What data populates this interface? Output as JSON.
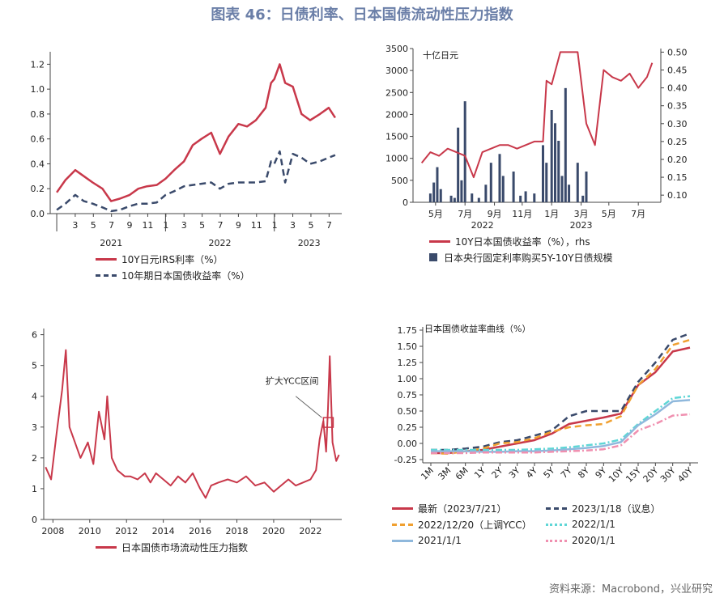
{
  "title": "图表 46：日债利率、日本国债流动性压力指数",
  "source": "资料来源：Macrobond，兴业研究",
  "colors": {
    "red": "#c8384a",
    "navy": "#3a4a6b",
    "orange": "#f0a030",
    "cyan": "#5fd6d6",
    "lightblue": "#8fb8dc",
    "pink": "#f090b0"
  },
  "chart_data": [
    {
      "type": "line",
      "panel": "top-left",
      "ylim": [
        0,
        1.3
      ],
      "yticks": [
        "0.0",
        "0.2",
        "0.4",
        "0.6",
        "0.8",
        "1.0",
        "1.2"
      ],
      "xtick_labels": [
        "3",
        "5",
        "7",
        "9",
        "11",
        "1",
        "3",
        "5",
        "7",
        "9",
        "11",
        "1",
        "3",
        "5",
        "7"
      ],
      "year_labels": [
        "2021",
        "2022",
        "2023"
      ],
      "series": [
        {
          "name": "10Y日元IRS利率（%）",
          "style": "solid",
          "color": "#c8384a",
          "x": [
            2021.0,
            2021.08,
            2021.17,
            2021.25,
            2021.33,
            2021.42,
            2021.5,
            2021.58,
            2021.67,
            2021.75,
            2021.83,
            2021.92,
            2022.0,
            2022.08,
            2022.17,
            2022.25,
            2022.33,
            2022.42,
            2022.5,
            2022.58,
            2022.67,
            2022.75,
            2022.83,
            2022.92,
            2022.97,
            2023.0,
            2023.05,
            2023.1,
            2023.17,
            2023.25,
            2023.33,
            2023.42,
            2023.5,
            2023.56
          ],
          "y": [
            0.17,
            0.27,
            0.35,
            0.3,
            0.25,
            0.2,
            0.1,
            0.12,
            0.15,
            0.2,
            0.22,
            0.23,
            0.28,
            0.35,
            0.42,
            0.55,
            0.6,
            0.65,
            0.48,
            0.62,
            0.72,
            0.7,
            0.75,
            0.85,
            1.05,
            1.08,
            1.2,
            1.05,
            1.02,
            0.8,
            0.75,
            0.8,
            0.85,
            0.77
          ]
        },
        {
          "name": "10年期日本国债收益率（%）",
          "style": "dash",
          "color": "#3a4a6b",
          "x": [
            2021.0,
            2021.08,
            2021.17,
            2021.25,
            2021.33,
            2021.42,
            2021.5,
            2021.58,
            2021.67,
            2021.75,
            2021.83,
            2021.92,
            2022.0,
            2022.08,
            2022.17,
            2022.25,
            2022.33,
            2022.42,
            2022.5,
            2022.58,
            2022.67,
            2022.75,
            2022.83,
            2022.92,
            2022.97,
            2023.0,
            2023.05,
            2023.1,
            2023.17,
            2023.25,
            2023.33,
            2023.42,
            2023.5,
            2023.56
          ],
          "y": [
            0.03,
            0.08,
            0.15,
            0.1,
            0.08,
            0.05,
            0.02,
            0.03,
            0.06,
            0.08,
            0.08,
            0.09,
            0.15,
            0.18,
            0.22,
            0.23,
            0.24,
            0.25,
            0.2,
            0.24,
            0.25,
            0.25,
            0.25,
            0.26,
            0.42,
            0.4,
            0.5,
            0.25,
            0.48,
            0.45,
            0.4,
            0.42,
            0.45,
            0.47
          ]
        }
      ]
    },
    {
      "type": "bar+line",
      "panel": "top-right",
      "unit_label": "十亿日元",
      "ylim_left": [
        0,
        3500
      ],
      "yticks_left": [
        "0",
        "500",
        "1000",
        "1500",
        "2000",
        "2500",
        "3000",
        "3500"
      ],
      "ylim_right": [
        0.08,
        0.51
      ],
      "yticks_right": [
        "0.10",
        "0.15",
        "0.20",
        "0.25",
        "0.30",
        "0.35",
        "0.40",
        "0.45",
        "0.50"
      ],
      "xtick_labels": [
        "5月",
        "7月",
        "9月",
        "11月",
        "1月",
        "3月",
        "5月",
        "7月"
      ],
      "year_labels": [
        "2022",
        "2023"
      ],
      "series": [
        {
          "name": "10Y日本国债收益率（%），rhs",
          "style": "solid",
          "axis": "right",
          "color": "#c8384a",
          "x": [
            2022.25,
            2022.3,
            2022.35,
            2022.4,
            2022.45,
            2022.5,
            2022.55,
            2022.6,
            2022.65,
            2022.7,
            2022.75,
            2022.8,
            2022.85,
            2022.9,
            2022.95,
            2022.97,
            2023.0,
            2023.05,
            2023.1,
            2023.15,
            2023.2,
            2023.25,
            2023.3,
            2023.35,
            2023.4,
            2023.45,
            2023.5,
            2023.55,
            2023.58
          ],
          "y": [
            0.19,
            0.22,
            0.21,
            0.23,
            0.22,
            0.21,
            0.15,
            0.22,
            0.23,
            0.24,
            0.24,
            0.23,
            0.24,
            0.25,
            0.25,
            0.42,
            0.41,
            0.5,
            0.5,
            0.5,
            0.3,
            0.24,
            0.45,
            0.43,
            0.42,
            0.44,
            0.4,
            0.43,
            0.47
          ]
        },
        {
          "name": "日本央行固定利率购买5Y-10Y日债规模",
          "style": "bar",
          "axis": "left",
          "color": "#3a4a6b",
          "x": [
            2022.3,
            2022.32,
            2022.34,
            2022.36,
            2022.42,
            2022.44,
            2022.46,
            2022.48,
            2022.5,
            2022.54,
            2022.58,
            2022.62,
            2022.65,
            2022.7,
            2022.72,
            2022.78,
            2022.82,
            2022.85,
            2022.9,
            2022.95,
            2022.97,
            2023.0,
            2023.02,
            2023.04,
            2023.06,
            2023.08,
            2023.1,
            2023.15,
            2023.18,
            2023.2
          ],
          "y": [
            200,
            450,
            800,
            300,
            150,
            100,
            1700,
            500,
            2300,
            200,
            100,
            400,
            900,
            1100,
            600,
            700,
            150,
            250,
            200,
            1300,
            900,
            2100,
            1800,
            1400,
            600,
            2600,
            400,
            900,
            150,
            700
          ]
        }
      ]
    },
    {
      "type": "line",
      "panel": "bottom-left",
      "ylim": [
        0,
        6.2
      ],
      "yticks": [
        "0",
        "1",
        "2",
        "3",
        "4",
        "5",
        "6"
      ],
      "xtick_labels": [
        "2008",
        "2010",
        "2012",
        "2014",
        "2016",
        "2018",
        "2020",
        "2022"
      ],
      "annotation": "扩大YCC区间",
      "series": [
        {
          "name": "日本国债市场流动性压力指数",
          "style": "solid",
          "color": "#c8384a",
          "x": [
            2007.6,
            2007.9,
            2008.2,
            2008.5,
            2008.7,
            2008.9,
            2009.2,
            2009.5,
            2009.9,
            2010.2,
            2010.5,
            2010.8,
            2010.95,
            2011.2,
            2011.5,
            2011.9,
            2012.2,
            2012.6,
            2013.0,
            2013.3,
            2013.6,
            2014.0,
            2014.4,
            2014.8,
            2015.2,
            2015.6,
            2016.0,
            2016.3,
            2016.6,
            2017.0,
            2017.5,
            2018.0,
            2018.5,
            2019.0,
            2019.5,
            2020.0,
            2020.4,
            2020.8,
            2021.2,
            2021.6,
            2022.0,
            2022.3,
            2022.5,
            2022.7,
            2022.85,
            2022.95,
            2023.05,
            2023.2,
            2023.4,
            2023.55
          ],
          "y": [
            1.7,
            1.3,
            2.8,
            4.2,
            5.5,
            3.0,
            2.5,
            2.0,
            2.5,
            1.8,
            3.5,
            2.6,
            4.0,
            2.0,
            1.6,
            1.4,
            1.4,
            1.3,
            1.5,
            1.2,
            1.5,
            1.3,
            1.1,
            1.4,
            1.2,
            1.5,
            1.0,
            0.7,
            1.1,
            1.2,
            1.3,
            1.2,
            1.4,
            1.1,
            1.2,
            0.9,
            1.1,
            1.3,
            1.1,
            1.2,
            1.3,
            1.6,
            2.6,
            3.2,
            2.2,
            3.6,
            5.3,
            2.5,
            1.9,
            2.1
          ]
        }
      ]
    },
    {
      "type": "line",
      "panel": "bottom-right",
      "unit_label": "日本国债收益率曲线（%）",
      "ylim": [
        -0.3,
        1.8
      ],
      "yticks": [
        "-0.25",
        "0.00",
        "0.25",
        "0.50",
        "0.75",
        "1.00",
        "1.25",
        "1.50",
        "1.75"
      ],
      "categories": [
        "1M",
        "3M",
        "6M",
        "1Y",
        "2Y",
        "3Y",
        "4Y",
        "5Y",
        "7Y",
        "8Y",
        "9Y",
        "10Y",
        "15Y",
        "20Y",
        "30Y",
        "40Y"
      ],
      "series": [
        {
          "name": "最新（2023/7/21）",
          "style": "solid",
          "color": "#c8384a",
          "values": [
            -0.15,
            -0.15,
            -0.12,
            -0.1,
            -0.05,
            0.0,
            0.05,
            0.15,
            0.3,
            0.35,
            0.4,
            0.46,
            0.9,
            1.1,
            1.42,
            1.48
          ]
        },
        {
          "name": "2023/1/18（议息）",
          "style": "dash",
          "color": "#3a4a6b",
          "values": [
            -0.1,
            -0.1,
            -0.08,
            -0.05,
            0.02,
            0.05,
            0.12,
            0.2,
            0.42,
            0.5,
            0.5,
            0.5,
            0.95,
            1.25,
            1.6,
            1.7
          ]
        },
        {
          "name": "2022/12/20（上调YCC）",
          "style": "dash",
          "color": "#f0a030",
          "values": [
            -0.15,
            -0.16,
            -0.12,
            -0.08,
            0.0,
            0.02,
            0.08,
            0.18,
            0.25,
            0.28,
            0.3,
            0.42,
            0.9,
            1.15,
            1.52,
            1.6
          ]
        },
        {
          "name": "2022/1/1",
          "style": "dashdot",
          "color": "#5fd6d6",
          "values": [
            -0.1,
            -0.1,
            -0.1,
            -0.1,
            -0.1,
            -0.1,
            -0.09,
            -0.08,
            -0.06,
            -0.03,
            0.0,
            0.06,
            0.3,
            0.5,
            0.7,
            0.73
          ]
        },
        {
          "name": "2021/1/1",
          "style": "solid",
          "color": "#8fb8dc",
          "values": [
            -0.12,
            -0.12,
            -0.12,
            -0.13,
            -0.13,
            -0.12,
            -0.12,
            -0.11,
            -0.09,
            -0.07,
            -0.04,
            0.02,
            0.28,
            0.45,
            0.65,
            0.67
          ]
        },
        {
          "name": "2020/1/1",
          "style": "dashdot",
          "color": "#f090b0",
          "values": [
            -0.15,
            -0.15,
            -0.15,
            -0.14,
            -0.14,
            -0.14,
            -0.14,
            -0.13,
            -0.12,
            -0.11,
            -0.09,
            -0.03,
            0.2,
            0.3,
            0.43,
            0.45
          ]
        }
      ]
    }
  ]
}
